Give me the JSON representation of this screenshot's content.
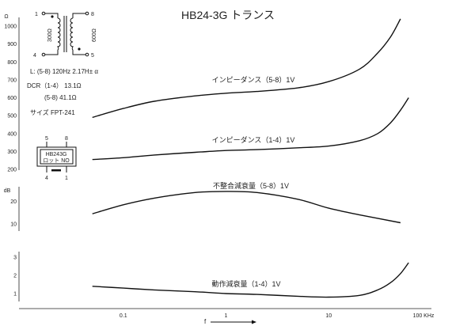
{
  "title": "HB24-3G トランス",
  "specs": {
    "inductance": "L: (5-8) 120Hz  2.17H± α",
    "dcr_1_4": "DCR（1-4）  13.1Ω",
    "dcr_5_8": "(5-8)  41.1Ω",
    "size": "サイズ  FPT-241"
  },
  "schematic": {
    "pin_1": "1",
    "pin_4": "4",
    "pin_5": "5",
    "pin_8": "8",
    "primary_impedance": "300Ω",
    "secondary_impedance": "600Ω"
  },
  "package": {
    "model": "HB243G",
    "lot": "ロット NO",
    "pin_5": "5",
    "pin_8": "8",
    "pin_4": "4",
    "pin_1": "1"
  },
  "x_axis": {
    "label": "f",
    "ticks": [
      "0.1",
      "1",
      "10",
      "100 KHz"
    ],
    "tick_values": [
      0.1,
      1,
      10,
      100
    ],
    "scale": "log",
    "range": [
      0.01,
      100
    ]
  },
  "chart_data": [
    {
      "type": "line",
      "panel": "impedance",
      "ylabel": "Ω",
      "ylim": [
        200,
        1000
      ],
      "y_ticks": [
        "1000",
        "900",
        "800",
        "700",
        "600",
        "500",
        "400",
        "300",
        "200"
      ],
      "y_tick_values": [
        1000,
        900,
        800,
        700,
        600,
        500,
        400,
        300,
        200
      ],
      "series": [
        {
          "name": "インピーダンス（5-8）1V",
          "x": [
            0.05,
            0.1,
            0.2,
            0.5,
            1,
            2,
            5,
            10,
            20,
            30,
            40,
            50
          ],
          "y": [
            490,
            540,
            580,
            610,
            625,
            635,
            655,
            690,
            760,
            850,
            940,
            1040
          ]
        },
        {
          "name": "インピーダンス（1-4）1V",
          "x": [
            0.05,
            0.1,
            0.2,
            0.5,
            1,
            2,
            5,
            10,
            20,
            30,
            40,
            50,
            60
          ],
          "y": [
            255,
            265,
            280,
            295,
            305,
            310,
            320,
            330,
            360,
            400,
            460,
            530,
            600
          ]
        }
      ]
    },
    {
      "type": "line",
      "panel": "mismatch_loss",
      "ylabel": "dB",
      "ylim": [
        5,
        28
      ],
      "y_ticks": [
        "20",
        "10"
      ],
      "y_tick_values": [
        20,
        10
      ],
      "series": [
        {
          "name": "不整合減衰量（5-8）1V",
          "x": [
            0.05,
            0.1,
            0.2,
            0.5,
            1,
            2,
            5,
            10,
            20,
            50
          ],
          "y": [
            14.5,
            18.5,
            21.5,
            24,
            24.5,
            24,
            21,
            17,
            14,
            10.5
          ]
        }
      ]
    },
    {
      "type": "line",
      "panel": "operating_loss",
      "ylim": [
        0.3,
        3.4
      ],
      "y_ticks": [
        "3",
        "2",
        "1"
      ],
      "y_tick_values": [
        3,
        2,
        1
      ],
      "series": [
        {
          "name": "動作減衰量（1-4）1V",
          "x": [
            0.05,
            0.1,
            0.2,
            0.5,
            1,
            2,
            5,
            10,
            20,
            30,
            40,
            50,
            60
          ],
          "y": [
            1.4,
            1.3,
            1.2,
            1.1,
            1.0,
            0.95,
            0.85,
            0.8,
            0.9,
            1.2,
            1.6,
            2.1,
            2.7
          ]
        }
      ]
    }
  ]
}
